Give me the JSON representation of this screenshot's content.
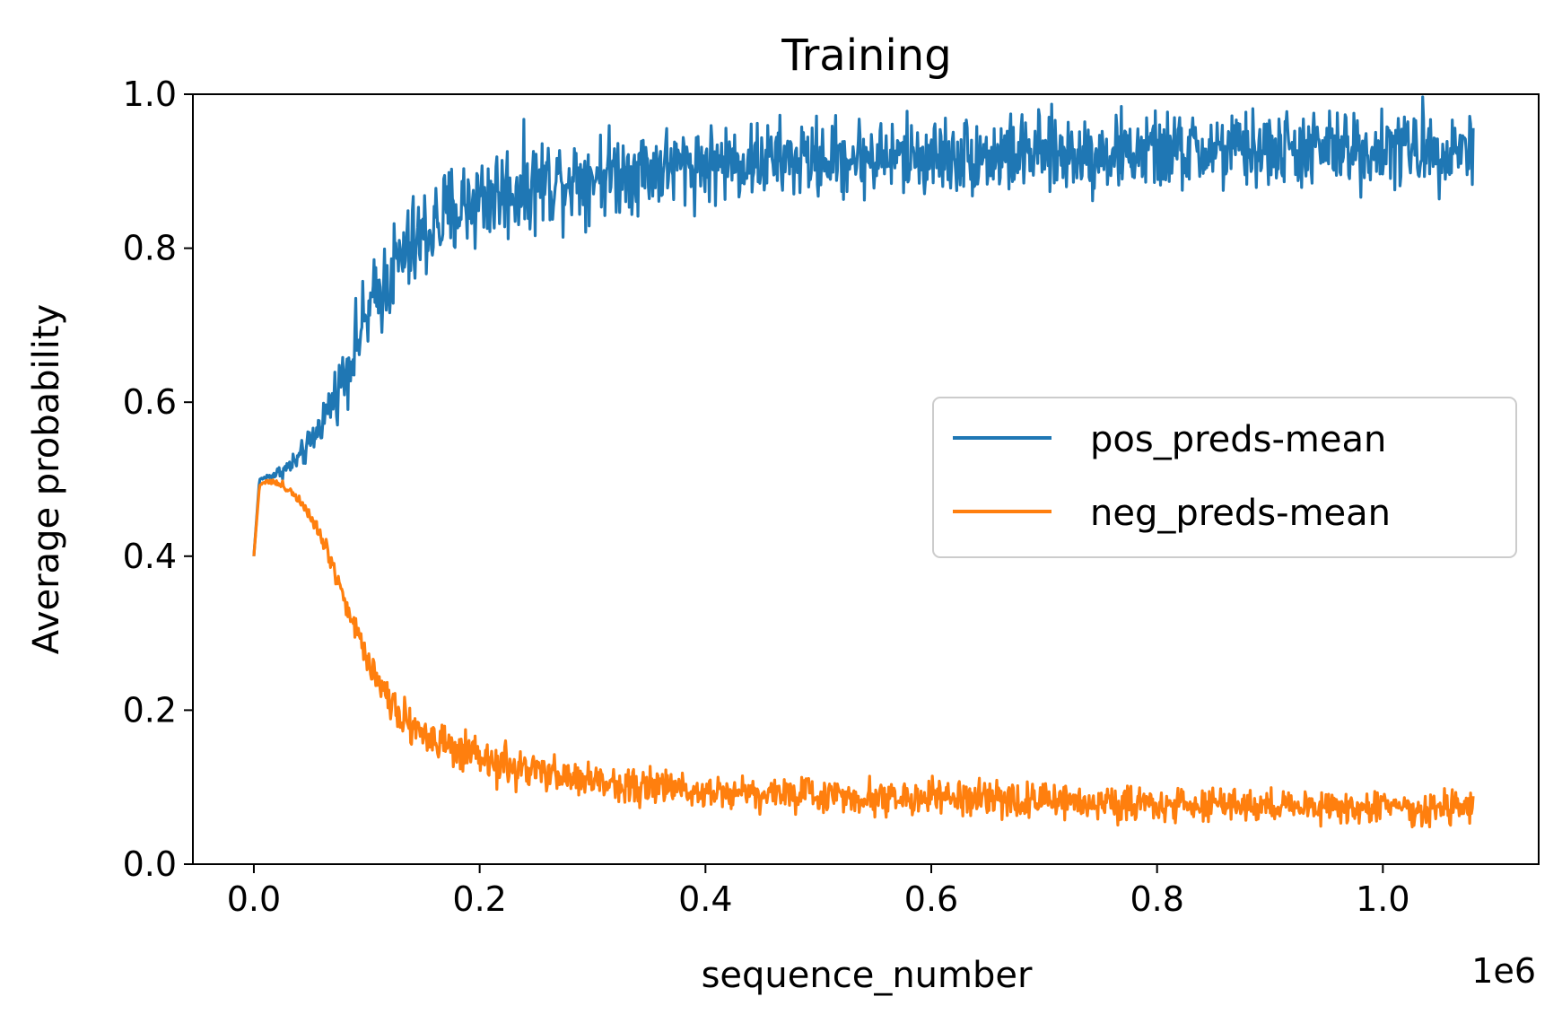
{
  "chart_data": {
    "type": "line",
    "title": "Training",
    "xlabel": "sequence_number",
    "ylabel": "Average probability",
    "x_offset_label": "1e6",
    "xlim": [
      -0.054,
      1.138
    ],
    "ylim": [
      0.0,
      1.0
    ],
    "x_ticks": [
      0.0,
      0.2,
      0.4,
      0.6,
      0.8,
      1.0
    ],
    "x_tick_labels": [
      "0.0",
      "0.2",
      "0.4",
      "0.6",
      "0.8",
      "1.0"
    ],
    "y_ticks": [
      0.0,
      0.2,
      0.4,
      0.6,
      0.8,
      1.0
    ],
    "y_tick_labels": [
      "0.0",
      "0.2",
      "0.4",
      "0.6",
      "0.8",
      "1.0"
    ],
    "grid": false,
    "legend_position": "center-right",
    "series": [
      {
        "name": "pos_preds-mean",
        "color": "#1f77b4",
        "x": [
          0.0,
          0.005,
          0.01,
          0.02,
          0.03,
          0.04,
          0.05,
          0.06,
          0.07,
          0.08,
          0.09,
          0.1,
          0.11,
          0.12,
          0.13,
          0.14,
          0.15,
          0.16,
          0.17,
          0.18,
          0.19,
          0.2,
          0.22,
          0.24,
          0.26,
          0.28,
          0.3,
          0.32,
          0.34,
          0.36,
          0.38,
          0.4,
          0.42,
          0.44,
          0.46,
          0.48,
          0.5,
          0.52,
          0.54,
          0.56,
          0.58,
          0.6,
          0.62,
          0.64,
          0.66,
          0.68,
          0.7,
          0.72,
          0.74,
          0.76,
          0.78,
          0.8,
          0.82,
          0.84,
          0.86,
          0.88,
          0.9,
          0.92,
          0.94,
          0.96,
          0.98,
          1.0,
          1.02,
          1.04,
          1.06,
          1.08
        ],
        "y": [
          0.4,
          0.5,
          0.502,
          0.507,
          0.515,
          0.527,
          0.545,
          0.575,
          0.605,
          0.635,
          0.675,
          0.71,
          0.74,
          0.765,
          0.785,
          0.8,
          0.815,
          0.83,
          0.84,
          0.85,
          0.86,
          0.865,
          0.872,
          0.88,
          0.887,
          0.892,
          0.897,
          0.9,
          0.903,
          0.906,
          0.908,
          0.91,
          0.912,
          0.913,
          0.914,
          0.915,
          0.916,
          0.917,
          0.918,
          0.918,
          0.919,
          0.92,
          0.92,
          0.921,
          0.921,
          0.922,
          0.922,
          0.923,
          0.923,
          0.924,
          0.924,
          0.925,
          0.925,
          0.926,
          0.926,
          0.927,
          0.927,
          0.928,
          0.928,
          0.928,
          0.929,
          0.929,
          0.93,
          0.93,
          0.93,
          0.931
        ],
        "noise": [
          0.0,
          0.0,
          0.002,
          0.004,
          0.006,
          0.008,
          0.01,
          0.012,
          0.016,
          0.02,
          0.024,
          0.026,
          0.028,
          0.03,
          0.032,
          0.032,
          0.032,
          0.032,
          0.032,
          0.032,
          0.032,
          0.032,
          0.032,
          0.03,
          0.03,
          0.028,
          0.028,
          0.027,
          0.027,
          0.026,
          0.026,
          0.025,
          0.025,
          0.025,
          0.025,
          0.025,
          0.025,
          0.025,
          0.025,
          0.025,
          0.025,
          0.025,
          0.025,
          0.025,
          0.025,
          0.025,
          0.025,
          0.025,
          0.025,
          0.025,
          0.025,
          0.025,
          0.025,
          0.025,
          0.025,
          0.025,
          0.025,
          0.025,
          0.025,
          0.025,
          0.025,
          0.025,
          0.025,
          0.025,
          0.025,
          0.025
        ]
      },
      {
        "name": "neg_preds-mean",
        "color": "#ff7f0e",
        "x": [
          0.0,
          0.005,
          0.01,
          0.02,
          0.03,
          0.04,
          0.05,
          0.06,
          0.07,
          0.08,
          0.09,
          0.1,
          0.11,
          0.12,
          0.13,
          0.14,
          0.15,
          0.16,
          0.17,
          0.18,
          0.19,
          0.2,
          0.22,
          0.24,
          0.26,
          0.28,
          0.3,
          0.32,
          0.34,
          0.36,
          0.38,
          0.4,
          0.42,
          0.44,
          0.46,
          0.48,
          0.5,
          0.52,
          0.54,
          0.56,
          0.58,
          0.6,
          0.62,
          0.64,
          0.66,
          0.68,
          0.7,
          0.72,
          0.74,
          0.76,
          0.78,
          0.8,
          0.82,
          0.84,
          0.86,
          0.88,
          0.9,
          0.92,
          0.94,
          0.96,
          0.98,
          1.0,
          1.02,
          1.04,
          1.06,
          1.08
        ],
        "y": [
          0.4,
          0.492,
          0.498,
          0.495,
          0.488,
          0.475,
          0.455,
          0.425,
          0.39,
          0.345,
          0.305,
          0.27,
          0.24,
          0.215,
          0.197,
          0.182,
          0.17,
          0.16,
          0.152,
          0.145,
          0.14,
          0.135,
          0.128,
          0.122,
          0.117,
          0.112,
          0.108,
          0.105,
          0.102,
          0.1,
          0.098,
          0.096,
          0.095,
          0.093,
          0.092,
          0.091,
          0.09,
          0.089,
          0.088,
          0.087,
          0.086,
          0.086,
          0.085,
          0.084,
          0.083,
          0.083,
          0.082,
          0.081,
          0.081,
          0.08,
          0.079,
          0.079,
          0.078,
          0.077,
          0.077,
          0.076,
          0.076,
          0.075,
          0.075,
          0.074,
          0.074,
          0.073,
          0.073,
          0.072,
          0.072,
          0.071
        ],
        "noise": [
          0.0,
          0.0,
          0.002,
          0.002,
          0.003,
          0.004,
          0.005,
          0.006,
          0.007,
          0.008,
          0.009,
          0.01,
          0.011,
          0.012,
          0.013,
          0.013,
          0.013,
          0.013,
          0.013,
          0.013,
          0.013,
          0.013,
          0.013,
          0.012,
          0.012,
          0.012,
          0.012,
          0.011,
          0.011,
          0.011,
          0.011,
          0.011,
          0.011,
          0.011,
          0.011,
          0.011,
          0.011,
          0.011,
          0.011,
          0.011,
          0.011,
          0.011,
          0.011,
          0.011,
          0.011,
          0.011,
          0.011,
          0.011,
          0.011,
          0.011,
          0.011,
          0.011,
          0.011,
          0.011,
          0.011,
          0.011,
          0.011,
          0.011,
          0.011,
          0.011,
          0.011,
          0.011,
          0.011,
          0.011,
          0.011,
          0.011
        ]
      }
    ]
  }
}
